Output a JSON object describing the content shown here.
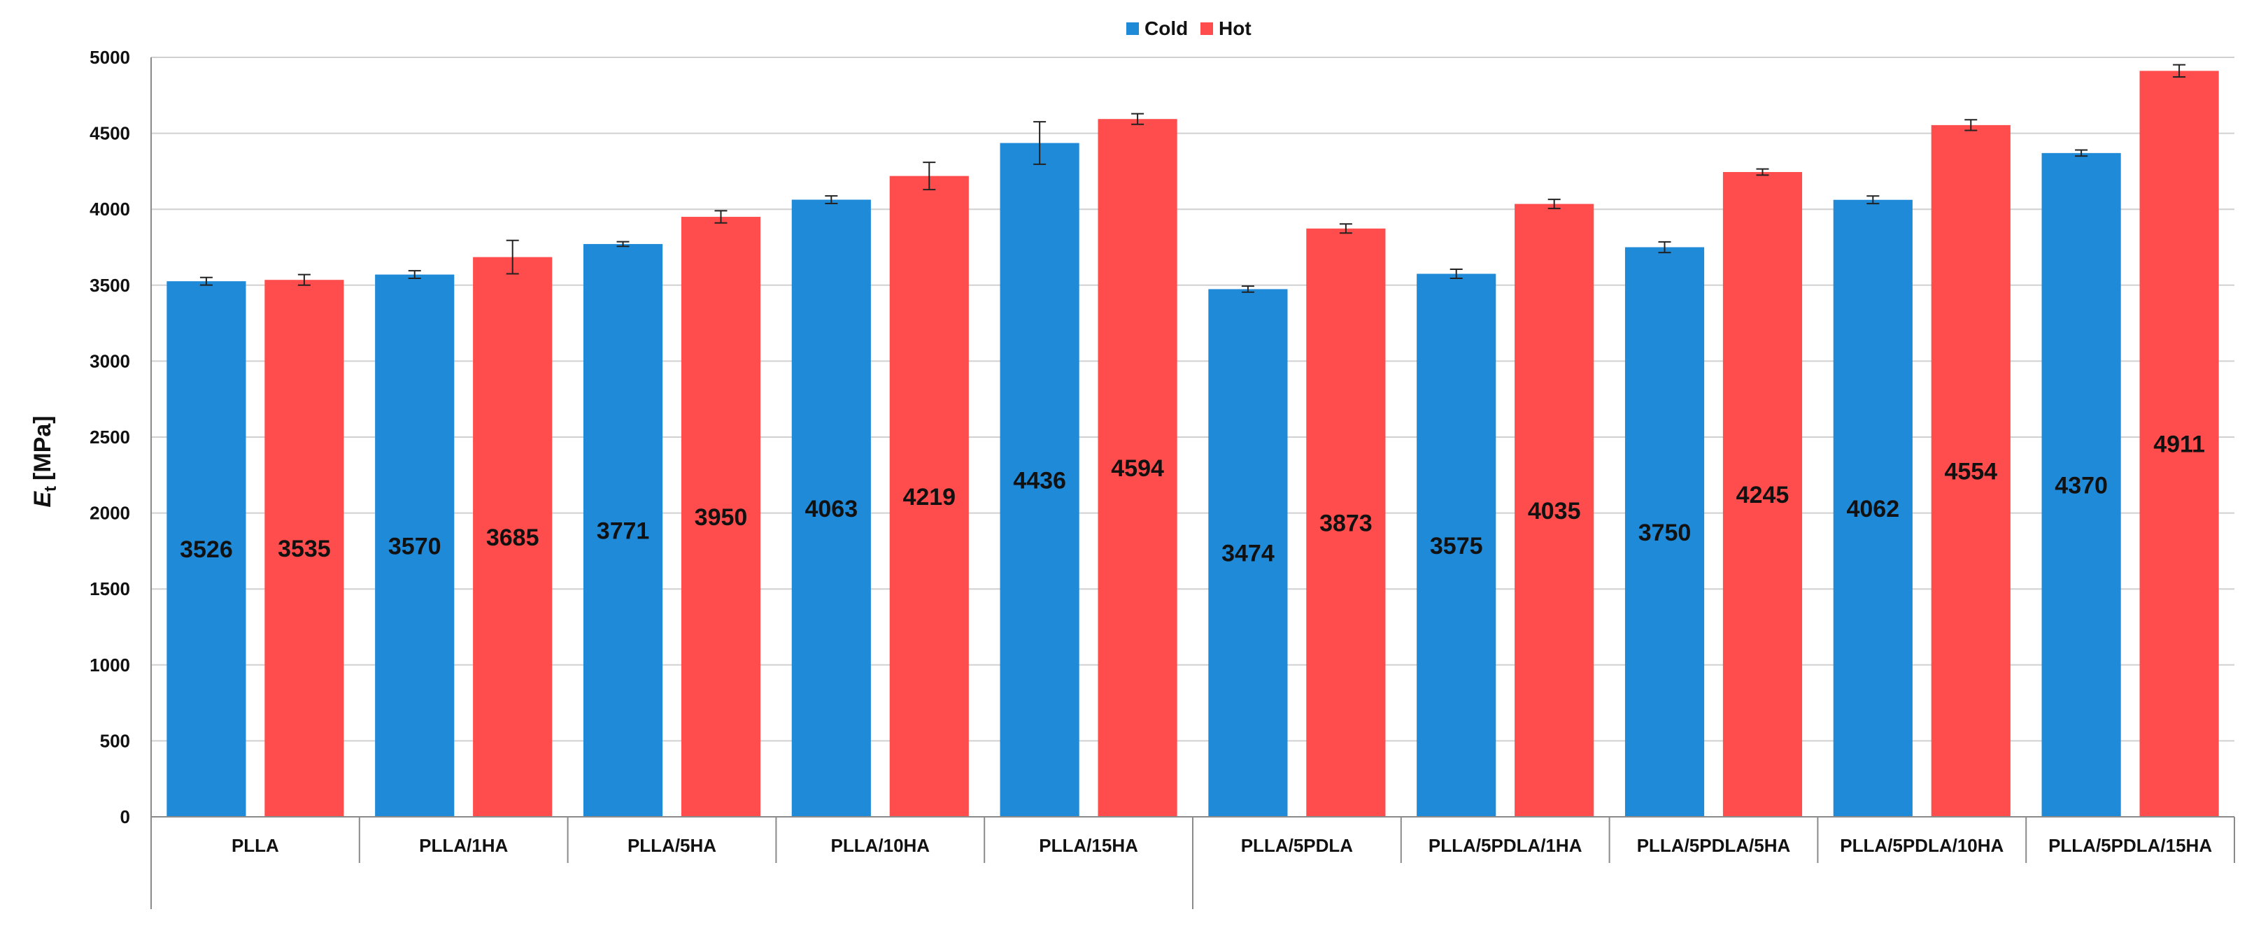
{
  "chart_data": {
    "type": "bar",
    "categories": [
      "PLLA",
      "PLLA/1HA",
      "PLLA/5HA",
      "PLLA/10HA",
      "PLLA/15HA",
      "PLLA/5PDLA",
      "PLLA/5PDLA/1HA",
      "PLLA/5PDLA/5HA",
      "PLLA/5PDLA/10HA",
      "PLLA/5PDLA/15HA"
    ],
    "series": [
      {
        "name": "Cold",
        "color": "#1f8ad8",
        "values": [
          3526,
          3570,
          3771,
          4063,
          4436,
          3474,
          3575,
          3750,
          4062,
          4370
        ],
        "errors": [
          25,
          25,
          15,
          25,
          140,
          20,
          30,
          35,
          25,
          20
        ]
      },
      {
        "name": "Hot",
        "color": "#ff4d4d",
        "values": [
          3535,
          3685,
          3950,
          4219,
          4594,
          3873,
          4035,
          4245,
          4554,
          4911
        ],
        "errors": [
          35,
          110,
          40,
          90,
          35,
          30,
          30,
          20,
          35,
          40
        ]
      }
    ],
    "ylabel_main": "E",
    "ylabel_sub": "t",
    "ylabel_unit": "[MPa]",
    "ylim": [
      0,
      5000
    ],
    "yticks": [
      0,
      500,
      1000,
      1500,
      2000,
      2500,
      3000,
      3500,
      4000,
      4500,
      5000
    ],
    "grid": true,
    "legend_position": "top-center"
  }
}
